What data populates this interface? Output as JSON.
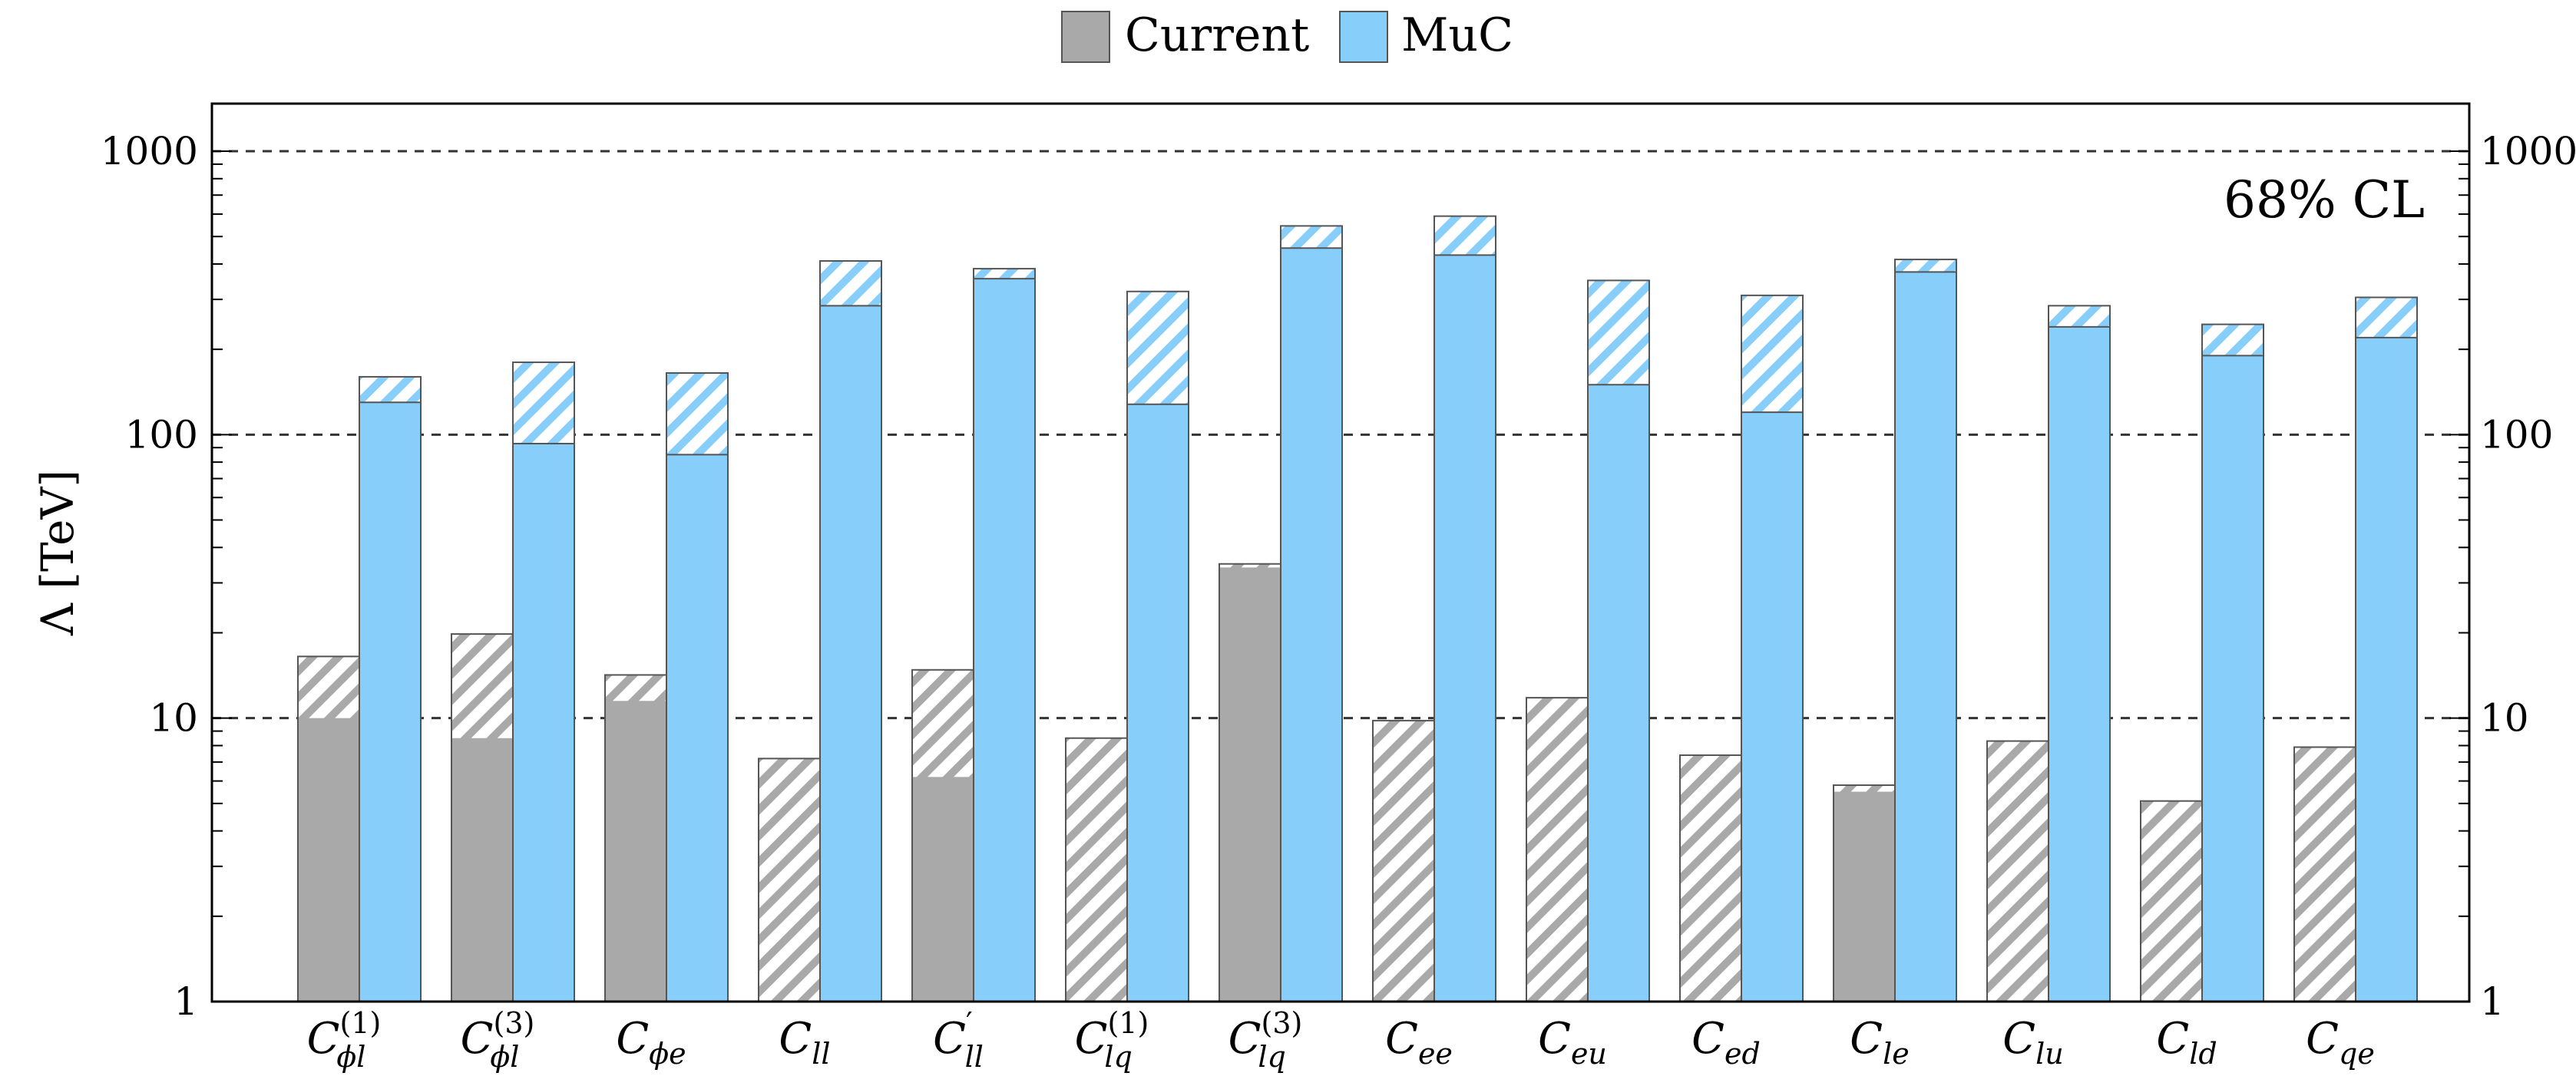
{
  "chart_data": {
    "type": "bar",
    "yscale": "log",
    "ylim": [
      1,
      1400
    ],
    "ylabel": "Λ [TeV]",
    "yticks": [
      "1",
      "10",
      "100",
      "1000"
    ],
    "grid": "dashed horizontal at 10, 100, 1000",
    "annotation": "68% CL",
    "legend": {
      "placement": "top-center",
      "entries": [
        "Current",
        "MuC"
      ]
    },
    "colors": {
      "Current": "#a9a9a9",
      "MuC": "#87cefa"
    },
    "categories": [
      {
        "base": "C",
        "sub": "ϕl",
        "sup": "(1)"
      },
      {
        "base": "C",
        "sub": "ϕl",
        "sup": "(3)"
      },
      {
        "base": "C",
        "sub": "ϕe",
        "sup": ""
      },
      {
        "base": "C",
        "sub": "ll",
        "sup": ""
      },
      {
        "base": "C",
        "sub": "ll",
        "sup": "′"
      },
      {
        "base": "C",
        "sub": "lq",
        "sup": "(1)"
      },
      {
        "base": "C",
        "sub": "lq",
        "sup": "(3)"
      },
      {
        "base": "C",
        "sub": "ee",
        "sup": ""
      },
      {
        "base": "C",
        "sub": "eu",
        "sup": ""
      },
      {
        "base": "C",
        "sub": "ed",
        "sup": ""
      },
      {
        "base": "C",
        "sub": "le",
        "sup": ""
      },
      {
        "base": "C",
        "sub": "lu",
        "sup": ""
      },
      {
        "base": "C",
        "sub": "ld",
        "sup": ""
      },
      {
        "base": "C",
        "sub": "qe",
        "sup": ""
      }
    ],
    "series": [
      {
        "name": "Current",
        "solid": [
          10,
          8.5,
          11.5,
          null,
          6.2,
          null,
          34,
          null,
          null,
          null,
          5.5,
          null,
          null,
          null
        ],
        "hatched_top": [
          16.5,
          19.8,
          14.2,
          7.2,
          14.8,
          8.5,
          35,
          9.8,
          11.8,
          7.4,
          5.8,
          8.3,
          5.1,
          7.9
        ]
      },
      {
        "name": "MuC",
        "solid": [
          130,
          93,
          85,
          285,
          355,
          128,
          455,
          430,
          150,
          120,
          375,
          240,
          190,
          220
        ],
        "hatched_top": [
          160,
          180,
          165,
          410,
          385,
          320,
          545,
          590,
          350,
          310,
          415,
          285,
          245,
          305
        ]
      }
    ]
  }
}
